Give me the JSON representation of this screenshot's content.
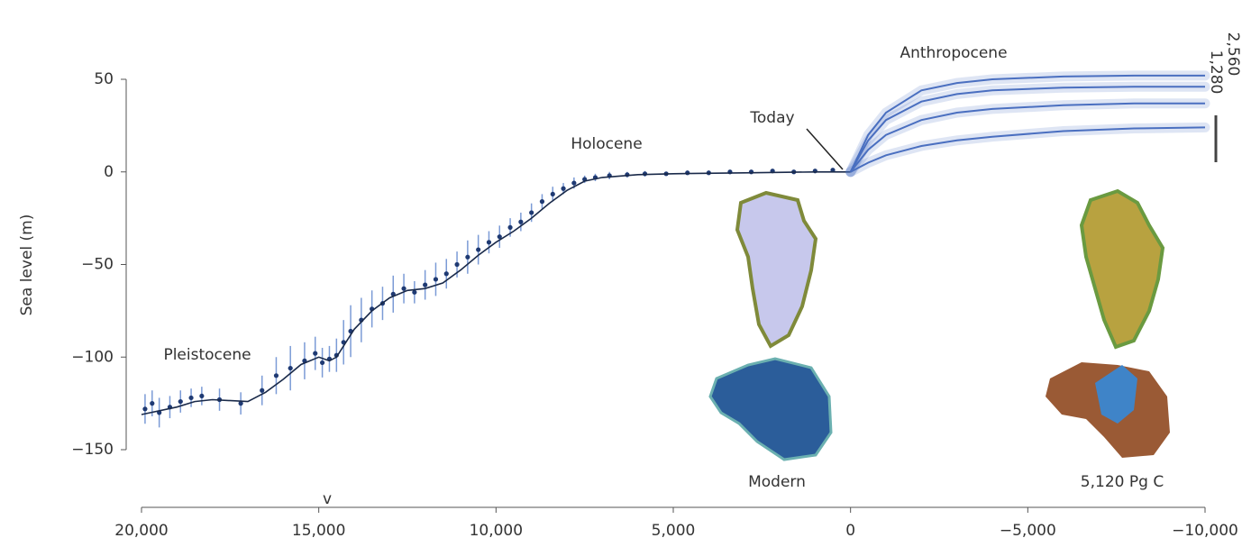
{
  "chart_data": {
    "type": "line",
    "y_label": "Sea level (m)",
    "xlim": [
      20000,
      -10000
    ],
    "ylim": [
      -150,
      50
    ],
    "xticks": [
      {
        "value": 20000,
        "label": "20,000"
      },
      {
        "value": 15000,
        "label": "15,000"
      },
      {
        "value": 10000,
        "label": "10,000"
      },
      {
        "value": 5000,
        "label": "5,000"
      },
      0,
      {
        "value": -5000,
        "label": "−5,000"
      },
      {
        "value": -10000,
        "label": "−10,000"
      }
    ],
    "yticks": [
      50,
      0,
      {
        "value": -50,
        "label": "−50"
      },
      {
        "value": -100,
        "label": "−100"
      },
      {
        "value": -150,
        "label": "−150"
      }
    ],
    "annotations": [
      "Pleistocene",
      "Holocene",
      "Anthropocene",
      "Today",
      "Modern",
      "5,120 Pg C",
      "1,280",
      "2,560",
      "v"
    ],
    "series": [
      {
        "style": "points",
        "color": "#1f3a73",
        "error_color": "#7b9bd6",
        "x": [
          19900,
          19700,
          19500,
          19200,
          18900,
          18600,
          18300,
          17800,
          17200,
          16600,
          16200,
          15800,
          15400,
          15100,
          14900,
          14700,
          14500,
          14300,
          14100,
          13800,
          13500,
          13200,
          12900,
          12600,
          12300,
          12000,
          11700,
          11400,
          11100,
          10800,
          10500,
          10200,
          9900,
          9600,
          9300,
          9000,
          8700,
          8400,
          8100,
          7800,
          7500,
          7200,
          6800,
          6300,
          5800,
          5200,
          4600,
          4000,
          3400,
          2800,
          2200,
          1600,
          1000,
          500
        ],
        "values": [
          -128,
          -125,
          -130,
          -127,
          -124,
          -122,
          -121,
          -123,
          -125,
          -118,
          -110,
          -106,
          -102,
          -98,
          -103,
          -101,
          -99,
          -92,
          -86,
          -80,
          -74,
          -71,
          -66,
          -63,
          -65,
          -61,
          -58,
          -55,
          -50,
          -46,
          -42,
          -38,
          -35,
          -30,
          -27,
          -22,
          -16,
          -12,
          -9,
          -6,
          -4,
          -3,
          -2,
          -1.5,
          -1,
          -1,
          -0.5,
          -0.5,
          0,
          0,
          0.5,
          0,
          0.5,
          1
        ],
        "errors": [
          8,
          7,
          8,
          6,
          6,
          5,
          5,
          6,
          6,
          8,
          10,
          12,
          10,
          9,
          8,
          7,
          9,
          12,
          14,
          12,
          10,
          9,
          10,
          8,
          6,
          8,
          9,
          8,
          7,
          9,
          8,
          6,
          6,
          5,
          5,
          5,
          4,
          4,
          3,
          3,
          2,
          2,
          2,
          1.5,
          1.5,
          1,
          1,
          1,
          1,
          1,
          1,
          1,
          1,
          1
        ]
      },
      {
        "style": "line",
        "color": "#1a2a4a",
        "x": [
          20000,
          19000,
          18500,
          18000,
          17000,
          16500,
          16000,
          15500,
          15000,
          14700,
          14500,
          14000,
          13500,
          13000,
          12500,
          12000,
          11500,
          11000,
          10500,
          10000,
          9500,
          9000,
          8500,
          8000,
          7500,
          7000,
          6000,
          5000,
          3000,
          1000,
          0
        ],
        "values": [
          -131,
          -127,
          -124,
          -123,
          -124,
          -119,
          -112,
          -104,
          -100,
          -102,
          -100,
          -85,
          -75,
          -68,
          -64,
          -63,
          -60,
          -53,
          -45,
          -38,
          -32,
          -25,
          -17,
          -10,
          -5,
          -3,
          -1.5,
          -1,
          -0.5,
          0,
          0
        ]
      },
      {
        "style": "line",
        "color": "#4a6fc0",
        "band": true,
        "x": [
          0,
          -500,
          -1000,
          -2000,
          -3000,
          -4000,
          -6000,
          -8000,
          -10000
        ],
        "values": [
          0,
          20,
          32,
          44,
          48,
          50,
          51.5,
          52,
          52
        ]
      },
      {
        "style": "line",
        "color": "#4a6fc0",
        "band": true,
        "x": [
          0,
          -500,
          -1000,
          -2000,
          -3000,
          -4000,
          -6000,
          -8000,
          -10000
        ],
        "values": [
          0,
          17,
          28,
          38,
          42,
          44,
          45.5,
          46,
          46
        ]
      },
      {
        "style": "line",
        "color": "#4a6fc0",
        "band": true,
        "x": [
          0,
          -500,
          -1000,
          -2000,
          -3000,
          -4000,
          -6000,
          -8000,
          -10000
        ],
        "values": [
          0,
          12,
          20,
          28,
          32,
          34,
          36,
          37,
          37
        ]
      },
      {
        "style": "line",
        "color": "#4a6fc0",
        "band": true,
        "x": [
          0,
          -500,
          -1000,
          -2000,
          -3000,
          -4000,
          -6000,
          -8000,
          -10000
        ],
        "values": [
          0,
          5,
          9,
          14,
          17,
          19,
          22,
          23.5,
          24
        ]
      }
    ]
  }
}
